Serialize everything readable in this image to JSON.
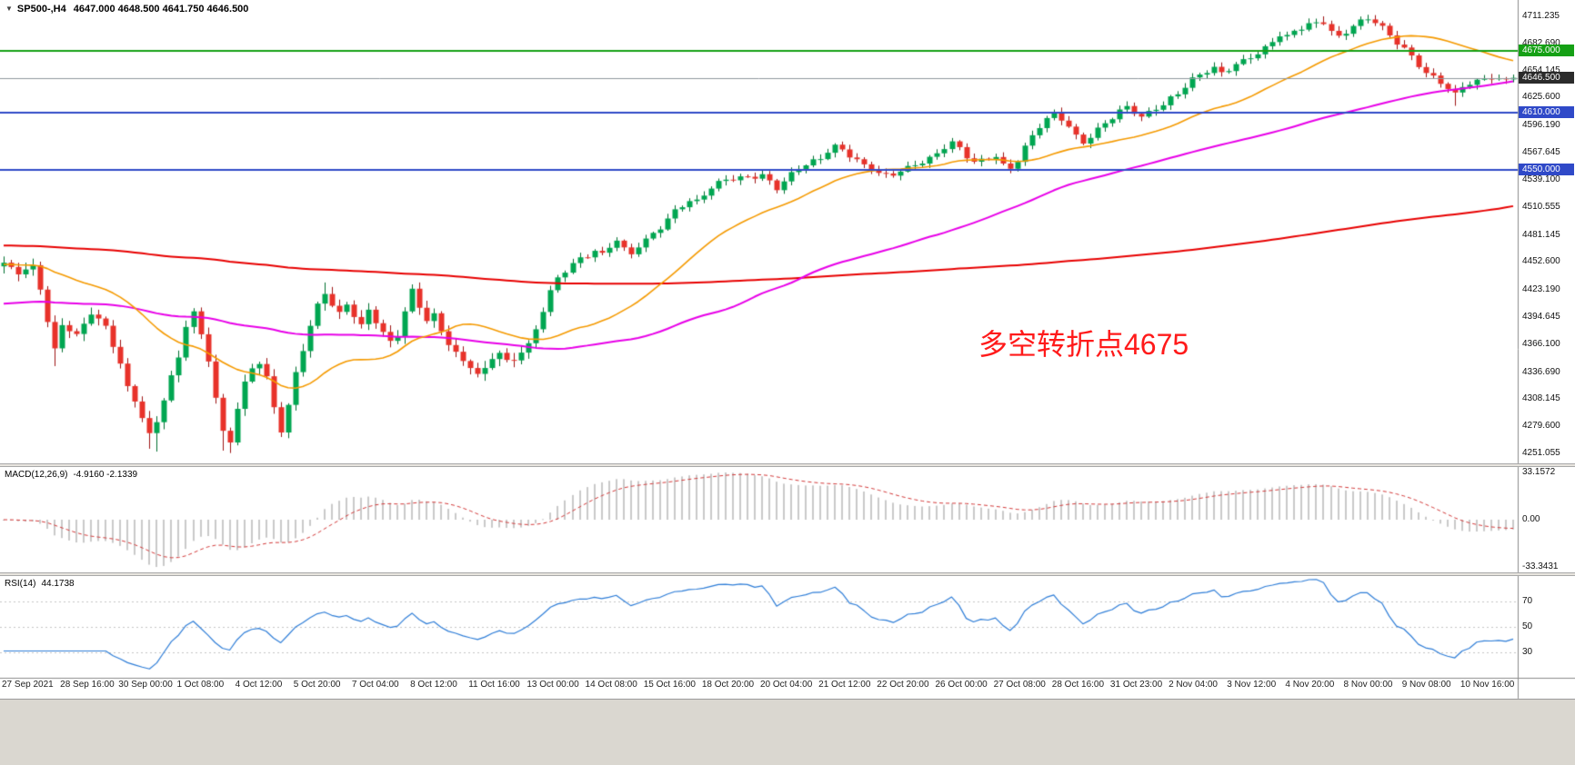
{
  "window": {
    "menu_arrow": "▼",
    "symbol": "SP500-,H4",
    "ohlc": "4647.000 4648.500 4641.750 4646.500"
  },
  "colors": {
    "up": "#00a651",
    "down": "#e8322a",
    "up_edge": "#00702f",
    "down_edge": "#9e1414",
    "ma_fast": "#f59a00",
    "ma_mid": "#e800e8",
    "ma_slow": "#e80000",
    "hline_green": "#15a015",
    "hline_blue": "#2f49c8",
    "current_line": "#8f979e",
    "current_badge_bg": "#2b2b2b",
    "macd_hist": "#c9c9c9",
    "macd_signal": "#d43a3a",
    "rsi_line": "#2f7ed8",
    "rsi_level": "#c6c6c6",
    "annotation": "#ff1a1a"
  },
  "price_axis": {
    "labels": [
      "4711.235",
      "4682.690",
      "4654.145",
      "4625.600",
      "4596.190",
      "4567.645",
      "4539.100",
      "4510.555",
      "4481.145",
      "4452.600",
      "4423.190",
      "4394.645",
      "4366.100",
      "4336.690",
      "4308.145",
      "4279.600",
      "4251.055"
    ]
  },
  "hlines": [
    {
      "price": 4675,
      "badge": "4675.000",
      "color_key": "green"
    },
    {
      "price": 4610,
      "badge": "4610.000",
      "color_key": "blue"
    },
    {
      "price": 4550,
      "badge": "4550.000",
      "color_key": "blue"
    }
  ],
  "current_price": {
    "value": 4646.5,
    "badge": "4646.500"
  },
  "indicators": {
    "macd": {
      "label": "MACD(12,26,9)",
      "values": "-4.9160 -2.1339",
      "axis": [
        "33.1572",
        "0.00",
        "-33.3431"
      ],
      "fast": 12,
      "slow": 26,
      "signal": 9
    },
    "rsi": {
      "label": "RSI(14)",
      "value": "44.1738",
      "levels": [
        "70",
        "50",
        "30"
      ],
      "period": 14,
      "range": [
        10,
        90
      ]
    }
  },
  "annotation": {
    "text": "多空转折点4675"
  },
  "chart_data": {
    "type": "candlestick",
    "symbol": "SP500",
    "timeframe": "H4",
    "bars": 208,
    "bars_per_label": 8,
    "y_range": [
      4240.6,
      4728.4
    ],
    "x_labels": [
      "27 Sep 2021",
      "28 Sep 16:00",
      "30 Sep 00:00",
      "1 Oct 08:00",
      "4 Oct 12:00",
      "5 Oct 20:00",
      "7 Oct 04:00",
      "8 Oct 12:00",
      "11 Oct 16:00",
      "13 Oct 00:00",
      "14 Oct 08:00",
      "15 Oct 16:00",
      "18 Oct 20:00",
      "20 Oct 04:00",
      "21 Oct 12:00",
      "22 Oct 20:00",
      "26 Oct 00:00",
      "27 Oct 08:00",
      "28 Oct 16:00",
      "31 Oct 23:00",
      "2 Nov 04:00",
      "3 Nov 12:00",
      "4 Nov 20:00",
      "8 Nov 00:00",
      "9 Nov 08:00",
      "10 Nov 16:00"
    ],
    "waypoints": [
      [
        0,
        4448
      ],
      [
        2,
        4442
      ],
      [
        4,
        4450
      ],
      [
        5,
        4428
      ],
      [
        6,
        4392
      ],
      [
        7,
        4360
      ],
      [
        8,
        4386
      ],
      [
        10,
        4372
      ],
      [
        12,
        4398
      ],
      [
        14,
        4386
      ],
      [
        15,
        4368
      ],
      [
        16,
        4348
      ],
      [
        17,
        4322
      ],
      [
        18,
        4308
      ],
      [
        19,
        4288
      ],
      [
        20,
        4268
      ],
      [
        21,
        4282
      ],
      [
        22,
        4306
      ],
      [
        23,
        4330
      ],
      [
        24,
        4352
      ],
      [
        25,
        4388
      ],
      [
        26,
        4402
      ],
      [
        27,
        4378
      ],
      [
        28,
        4352
      ],
      [
        29,
        4310
      ],
      [
        30,
        4272
      ],
      [
        31,
        4262
      ],
      [
        32,
        4296
      ],
      [
        33,
        4322
      ],
      [
        34,
        4340
      ],
      [
        35,
        4347
      ],
      [
        36,
        4332
      ],
      [
        37,
        4302
      ],
      [
        38,
        4278
      ],
      [
        39,
        4303
      ],
      [
        40,
        4336
      ],
      [
        41,
        4360
      ],
      [
        42,
        4383
      ],
      [
        43,
        4404
      ],
      [
        44,
        4418
      ],
      [
        45,
        4406
      ],
      [
        46,
        4398
      ],
      [
        47,
        4410
      ],
      [
        48,
        4399
      ],
      [
        49,
        4388
      ],
      [
        50,
        4404
      ],
      [
        51,
        4391
      ],
      [
        52,
        4377
      ],
      [
        53,
        4366
      ],
      [
        54,
        4373
      ],
      [
        55,
        4398
      ],
      [
        56,
        4421
      ],
      [
        57,
        4406
      ],
      [
        58,
        4393
      ],
      [
        59,
        4399
      ],
      [
        60,
        4383
      ],
      [
        61,
        4369
      ],
      [
        62,
        4357
      ],
      [
        63,
        4347
      ],
      [
        64,
        4341
      ],
      [
        65,
        4331
      ],
      [
        66,
        4337
      ],
      [
        67,
        4351
      ],
      [
        68,
        4357
      ],
      [
        69,
        4349
      ],
      [
        70,
        4353
      ],
      [
        71,
        4361
      ],
      [
        72,
        4367
      ],
      [
        73,
        4383
      ],
      [
        74,
        4401
      ],
      [
        75,
        4419
      ],
      [
        76,
        4433
      ],
      [
        77,
        4441
      ],
      [
        78,
        4449
      ],
      [
        79,
        4456
      ],
      [
        80,
        4461
      ],
      [
        81,
        4467
      ],
      [
        82,
        4463
      ],
      [
        83,
        4471
      ],
      [
        84,
        4477
      ],
      [
        85,
        4465
      ],
      [
        86,
        4459
      ],
      [
        87,
        4467
      ],
      [
        88,
        4473
      ],
      [
        89,
        4481
      ],
      [
        90,
        4489
      ],
      [
        91,
        4499
      ],
      [
        92,
        4509
      ],
      [
        93,
        4515
      ],
      [
        94,
        4519
      ],
      [
        95,
        4517
      ],
      [
        96,
        4523
      ],
      [
        97,
        4529
      ],
      [
        98,
        4533
      ],
      [
        99,
        4537
      ],
      [
        100,
        4539
      ],
      [
        101,
        4541
      ],
      [
        102,
        4543
      ],
      [
        103,
        4545
      ],
      [
        104,
        4547
      ],
      [
        105,
        4539
      ],
      [
        106,
        4531
      ],
      [
        107,
        4537
      ],
      [
        108,
        4543
      ],
      [
        109,
        4549
      ],
      [
        110,
        4553
      ],
      [
        111,
        4557
      ],
      [
        112,
        4561
      ],
      [
        113,
        4571
      ],
      [
        114,
        4577
      ],
      [
        115,
        4573
      ],
      [
        116,
        4567
      ],
      [
        117,
        4561
      ],
      [
        118,
        4553
      ],
      [
        119,
        4549
      ],
      [
        120,
        4544
      ],
      [
        121,
        4541
      ],
      [
        122,
        4543
      ],
      [
        123,
        4549
      ],
      [
        124,
        4553
      ],
      [
        125,
        4557
      ],
      [
        126,
        4561
      ],
      [
        127,
        4564
      ],
      [
        128,
        4567
      ],
      [
        129,
        4573
      ],
      [
        130,
        4577
      ],
      [
        131,
        4569
      ],
      [
        132,
        4561
      ],
      [
        133,
        4557
      ],
      [
        134,
        4559
      ],
      [
        135,
        4563
      ],
      [
        136,
        4567
      ],
      [
        137,
        4557
      ],
      [
        138,
        4553
      ],
      [
        139,
        4561
      ],
      [
        140,
        4573
      ],
      [
        141,
        4583
      ],
      [
        142,
        4593
      ],
      [
        143,
        4601
      ],
      [
        144,
        4607
      ],
      [
        145,
        4603
      ],
      [
        146,
        4597
      ],
      [
        147,
        4587
      ],
      [
        148,
        4581
      ],
      [
        149,
        4587
      ],
      [
        150,
        4593
      ],
      [
        151,
        4598
      ],
      [
        152,
        4603
      ],
      [
        153,
        4609
      ],
      [
        154,
        4613
      ],
      [
        155,
        4609
      ],
      [
        156,
        4605
      ],
      [
        157,
        4611
      ],
      [
        158,
        4617
      ],
      [
        159,
        4621
      ],
      [
        160,
        4627
      ],
      [
        161,
        4631
      ],
      [
        162,
        4637
      ],
      [
        163,
        4643
      ],
      [
        164,
        4647
      ],
      [
        165,
        4651
      ],
      [
        166,
        4655
      ],
      [
        167,
        4651
      ],
      [
        168,
        4657
      ],
      [
        169,
        4663
      ],
      [
        170,
        4667
      ],
      [
        171,
        4671
      ],
      [
        172,
        4673
      ],
      [
        173,
        4677
      ],
      [
        174,
        4683
      ],
      [
        175,
        4689
      ],
      [
        176,
        4687
      ],
      [
        177,
        4694
      ],
      [
        178,
        4699
      ],
      [
        179,
        4704
      ],
      [
        180,
        4706
      ],
      [
        181,
        4708
      ],
      [
        182,
        4698
      ],
      [
        183,
        4690
      ],
      [
        184,
        4694
      ],
      [
        185,
        4700
      ],
      [
        186,
        4703
      ],
      [
        187,
        4706
      ],
      [
        188,
        4704
      ],
      [
        189,
        4699
      ],
      [
        190,
        4692
      ],
      [
        191,
        4686
      ],
      [
        192,
        4680
      ],
      [
        193,
        4671
      ],
      [
        194,
        4661
      ],
      [
        195,
        4651
      ],
      [
        196,
        4645
      ],
      [
        197,
        4639
      ],
      [
        198,
        4633
      ],
      [
        199,
        4627
      ],
      [
        200,
        4637
      ],
      [
        201,
        4642
      ],
      [
        202,
        4645
      ],
      [
        203,
        4648
      ],
      [
        204,
        4650
      ],
      [
        205,
        4646
      ],
      [
        206,
        4643
      ],
      [
        207,
        4646.5
      ]
    ],
    "extremes": [
      {
        "bar": 7,
        "low": 4343
      },
      {
        "bar": 20,
        "low": 4256
      },
      {
        "bar": 21,
        "low": 4253
      },
      {
        "bar": 30,
        "low": 4254
      },
      {
        "bar": 31,
        "low": 4251.5
      },
      {
        "bar": 44,
        "high": 4431
      },
      {
        "bar": 56,
        "high": 4429
      },
      {
        "bar": 181,
        "high": 4711.2
      },
      {
        "bar": 187,
        "high": 4709.5
      },
      {
        "bar": 199,
        "low": 4617
      }
    ],
    "overlays": [
      {
        "name": "sma-fast",
        "period": 24,
        "seed": 4450,
        "color_key": "ma_fast",
        "width": 1.6
      },
      {
        "name": "sma-mid",
        "period": 72,
        "seed": 4408,
        "color_key": "ma_mid",
        "width": 2
      },
      {
        "name": "sma-slow",
        "period": 200,
        "seed": 4470,
        "color_key": "ma_slow",
        "width": 2
      }
    ]
  }
}
